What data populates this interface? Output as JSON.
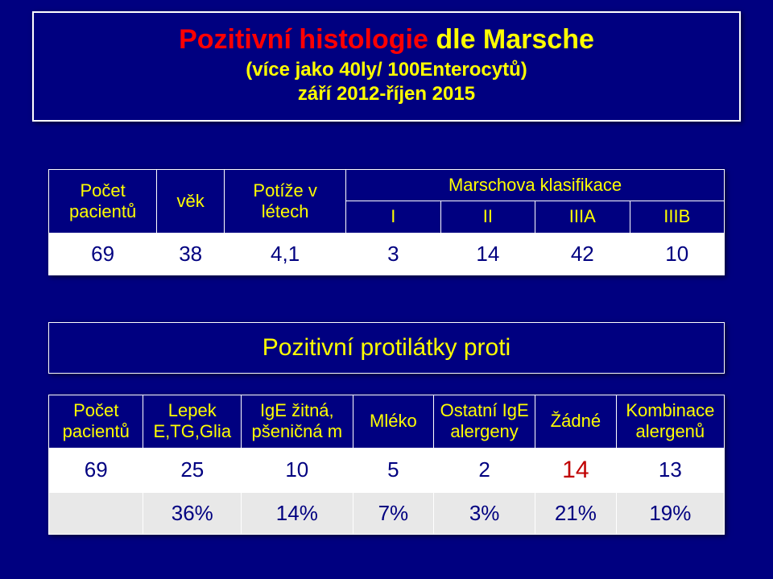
{
  "title": {
    "part1": "Pozitivní histologie",
    "part2": " dle Marsche",
    "sub1": "(více jako 40ly/ 100Enterocytů)",
    "sub2": "září 2012-říjen 2015"
  },
  "table1": {
    "headers": {
      "col0": "Počet pacientů",
      "col1": "věk",
      "col2": "Potíže v létech",
      "merged": "Marschova klasifikace",
      "sub_I": "I",
      "sub_II": "II",
      "sub_IIIA": "IIIA",
      "sub_IIIB": "IIIB"
    },
    "row": {
      "c0": "69",
      "c1": "38",
      "c2": "4,1",
      "c3": "3",
      "c4": "14",
      "c5": "42",
      "c6": "10"
    },
    "col_widths": [
      "16%",
      "10%",
      "18%",
      "14%",
      "14%",
      "14%",
      "14%"
    ]
  },
  "table2_title": "Pozitivní protilátky proti",
  "table2": {
    "headers": {
      "c0": "Počet pacientů",
      "c1": "Lepek E,TG,Glia",
      "c2": "IgE žitná, pšeničná m",
      "c3": "Mléko",
      "c4": "Ostatní IgE alergeny",
      "c5": "Žádné",
      "c6": "Kombinace alergenů"
    },
    "row1": {
      "c0": "69",
      "c1": "25",
      "c2": "10",
      "c3": "5",
      "c4": "2",
      "c5": "14",
      "c6": "13"
    },
    "row2": {
      "c0": "",
      "c1": "36%",
      "c2": "14%",
      "c3": "7%",
      "c4": "3%",
      "c5": "21%",
      "c6": "19%"
    },
    "col_widths": [
      "14%",
      "14.5%",
      "16.5%",
      "12%",
      "15%",
      "12%",
      "16%"
    ]
  },
  "colors": {
    "bg": "#000080",
    "yellow": "#ffff00",
    "red": "#ff0000",
    "white": "#ffffff",
    "darkred": "#c00000",
    "grayrow": "#e8e8e8"
  }
}
